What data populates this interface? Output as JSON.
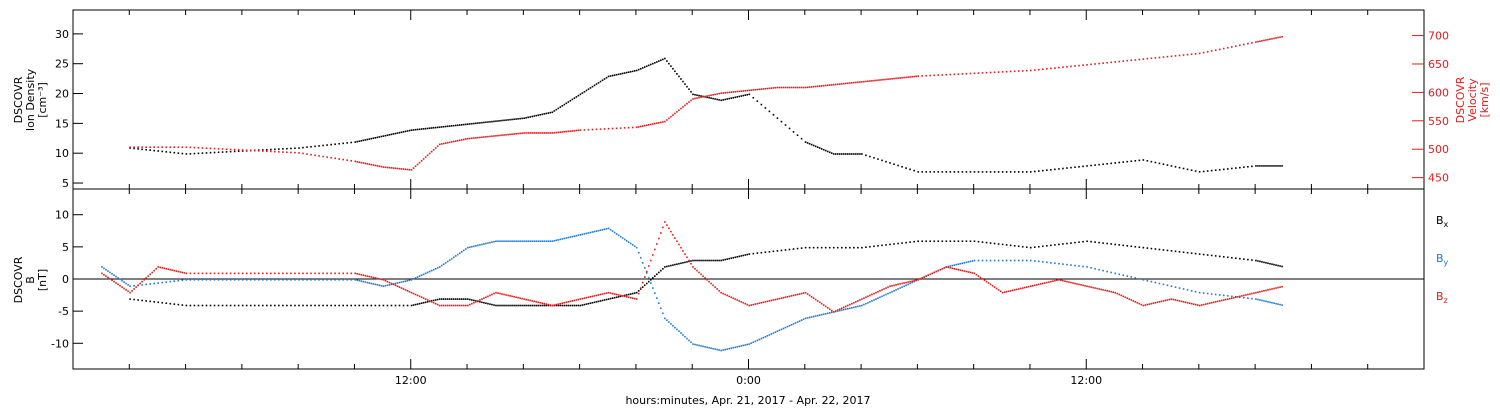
{
  "chart_data": [
    {
      "type": "scatter",
      "panel": "top",
      "left_axis": {
        "label_lines": [
          "DSCOVR",
          "Ion Density",
          "[cm⁻³]"
        ],
        "ticks": [
          "5",
          "10",
          "15",
          "20",
          "25",
          "30"
        ],
        "ylim": [
          4,
          34
        ],
        "color": "#000000"
      },
      "right_axis": {
        "label_lines": [
          "DSCOVR",
          "Velocity",
          "[km/s]"
        ],
        "ticks": [
          "450",
          "500",
          "550",
          "600",
          "650",
          "700"
        ],
        "ylim": [
          430,
          745
        ],
        "color": "#e31a1c"
      },
      "series": [
        {
          "color": "#000000",
          "axis": "left",
          "points": [
            [
              2,
              11
            ],
            [
              4,
              10
            ],
            [
              6,
              10.5
            ],
            [
              8,
              11
            ],
            [
              10,
              12
            ],
            [
              11,
              13
            ],
            [
              12,
              14
            ],
            [
              13,
              14.5
            ],
            [
              14,
              15
            ],
            [
              15,
              15.5
            ],
            [
              16,
              16
            ],
            [
              17,
              17
            ],
            [
              18,
              20
            ],
            [
              19,
              23
            ],
            [
              20,
              24
            ],
            [
              21,
              26
            ],
            [
              22,
              20
            ],
            [
              23,
              19
            ],
            [
              24,
              20
            ],
            [
              26,
              12
            ],
            [
              27,
              10
            ],
            [
              28,
              10
            ],
            [
              30,
              7
            ],
            [
              32,
              7
            ],
            [
              34,
              7
            ],
            [
              36,
              8
            ],
            [
              38,
              9
            ],
            [
              40,
              7
            ],
            [
              42,
              8
            ],
            [
              43,
              8
            ]
          ]
        },
        {
          "color": "#e31a1c",
          "axis": "right",
          "points": [
            [
              2,
              505
            ],
            [
              4,
              505
            ],
            [
              6,
              500
            ],
            [
              8,
              495
            ],
            [
              10,
              480
            ],
            [
              11,
              470
            ],
            [
              12,
              465
            ],
            [
              13,
              510
            ],
            [
              14,
              520
            ],
            [
              15,
              525
            ],
            [
              16,
              530
            ],
            [
              17,
              530
            ],
            [
              18,
              535
            ],
            [
              20,
              540
            ],
            [
              21,
              550
            ],
            [
              22,
              590
            ],
            [
              23,
              600
            ],
            [
              24,
              605
            ],
            [
              25,
              610
            ],
            [
              26,
              610
            ],
            [
              27,
              615
            ],
            [
              28,
              620
            ],
            [
              29,
              625
            ],
            [
              30,
              630
            ],
            [
              32,
              635
            ],
            [
              34,
              640
            ],
            [
              36,
              650
            ],
            [
              38,
              660
            ],
            [
              40,
              670
            ],
            [
              42,
              690
            ],
            [
              43,
              700
            ]
          ]
        }
      ]
    },
    {
      "type": "scatter",
      "panel": "bottom",
      "left_axis": {
        "label_lines": [
          "DSCOVR",
          "B",
          "[nT]"
        ],
        "ticks": [
          "-10",
          "-5",
          "0",
          "5",
          "10"
        ],
        "ylim": [
          -14,
          14
        ],
        "color": "#000000"
      },
      "legend": [
        {
          "label": "B",
          "sub": "x",
          "color": "#000000"
        },
        {
          "label": "B",
          "sub": "y",
          "color": "#1f78d4"
        },
        {
          "label": "B",
          "sub": "z",
          "color": "#e31a1c"
        }
      ],
      "series": [
        {
          "name": "Bx",
          "color": "#000000",
          "points": [
            [
              2,
              -3
            ],
            [
              4,
              -4
            ],
            [
              6,
              -4
            ],
            [
              8,
              -4
            ],
            [
              10,
              -4
            ],
            [
              12,
              -4
            ],
            [
              13,
              -3
            ],
            [
              14,
              -3
            ],
            [
              15,
              -4
            ],
            [
              16,
              -4
            ],
            [
              17,
              -4
            ],
            [
              18,
              -4
            ],
            [
              19,
              -3
            ],
            [
              20,
              -2
            ],
            [
              21,
              2
            ],
            [
              22,
              3
            ],
            [
              23,
              3
            ],
            [
              24,
              4
            ],
            [
              26,
              5
            ],
            [
              28,
              5
            ],
            [
              30,
              6
            ],
            [
              32,
              6
            ],
            [
              34,
              5
            ],
            [
              36,
              6
            ],
            [
              38,
              5
            ],
            [
              40,
              4
            ],
            [
              42,
              3
            ],
            [
              43,
              2
            ]
          ]
        },
        {
          "name": "By",
          "color": "#1f78d4",
          "points": [
            [
              1,
              2
            ],
            [
              2,
              -1
            ],
            [
              4,
              0
            ],
            [
              6,
              0
            ],
            [
              8,
              0
            ],
            [
              10,
              0
            ],
            [
              11,
              -1
            ],
            [
              12,
              0
            ],
            [
              13,
              2
            ],
            [
              14,
              5
            ],
            [
              15,
              6
            ],
            [
              16,
              6
            ],
            [
              17,
              6
            ],
            [
              18,
              7
            ],
            [
              19,
              8
            ],
            [
              20,
              5
            ],
            [
              21,
              -6
            ],
            [
              22,
              -10
            ],
            [
              23,
              -11
            ],
            [
              24,
              -10
            ],
            [
              25,
              -8
            ],
            [
              26,
              -6
            ],
            [
              27,
              -5
            ],
            [
              28,
              -4
            ],
            [
              29,
              -2
            ],
            [
              30,
              0
            ],
            [
              31,
              2
            ],
            [
              32,
              3
            ],
            [
              34,
              3
            ],
            [
              36,
              2
            ],
            [
              38,
              0
            ],
            [
              40,
              -2
            ],
            [
              42,
              -3
            ],
            [
              43,
              -4
            ]
          ]
        },
        {
          "name": "Bz",
          "color": "#e31a1c",
          "points": [
            [
              1,
              1
            ],
            [
              2,
              -2
            ],
            [
              3,
              2
            ],
            [
              4,
              1
            ],
            [
              6,
              1
            ],
            [
              8,
              1
            ],
            [
              10,
              1
            ],
            [
              11,
              0
            ],
            [
              12,
              -2
            ],
            [
              13,
              -4
            ],
            [
              14,
              -4
            ],
            [
              15,
              -2
            ],
            [
              16,
              -3
            ],
            [
              17,
              -4
            ],
            [
              18,
              -3
            ],
            [
              19,
              -2
            ],
            [
              20,
              -3
            ],
            [
              21,
              9
            ],
            [
              22,
              2
            ],
            [
              23,
              -2
            ],
            [
              24,
              -4
            ],
            [
              25,
              -3
            ],
            [
              26,
              -2
            ],
            [
              27,
              -5
            ],
            [
              28,
              -3
            ],
            [
              29,
              -1
            ],
            [
              30,
              0
            ],
            [
              31,
              2
            ],
            [
              32,
              1
            ],
            [
              33,
              -2
            ],
            [
              34,
              -1
            ],
            [
              35,
              0
            ],
            [
              36,
              -1
            ],
            [
              37,
              -2
            ],
            [
              38,
              -4
            ],
            [
              39,
              -3
            ],
            [
              40,
              -4
            ],
            [
              41,
              -3
            ],
            [
              42,
              -2
            ],
            [
              43,
              -1
            ]
          ]
        }
      ]
    }
  ],
  "x_axis": {
    "xlim": [
      0,
      48
    ],
    "tick_labels": [
      {
        "hour": 12,
        "label": "12:00"
      },
      {
        "hour": 24,
        "label": "0:00"
      },
      {
        "hour": 36,
        "label": "12:00"
      }
    ],
    "title": "hours:minutes, Apr. 21, 2017 - Apr. 22, 2017"
  }
}
